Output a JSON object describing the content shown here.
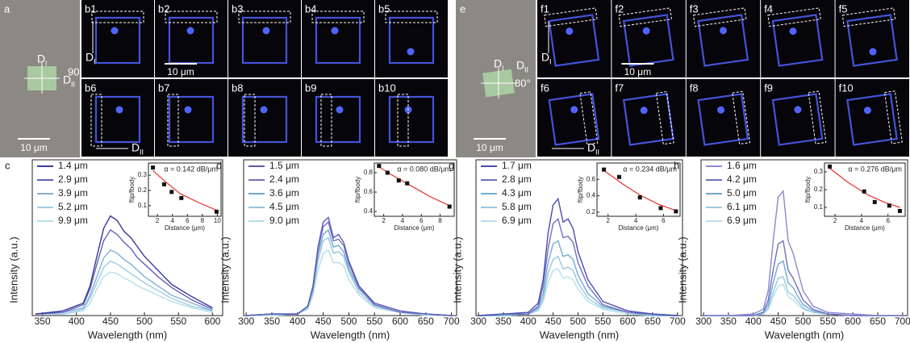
{
  "images": {
    "a": {
      "label": "a",
      "scale": "10 μm",
      "angle": "90°",
      "d1": {
        "main": "D",
        "sub": "I"
      },
      "d2": {
        "main": "D",
        "sub": "II"
      }
    },
    "b": {
      "labels": [
        "b1",
        "b2",
        "b3",
        "b4",
        "b5",
        "b6",
        "b7",
        "b8",
        "b9",
        "b10"
      ],
      "scale": "10 μm",
      "d1": {
        "main": "D",
        "sub": "I"
      },
      "d2": {
        "main": "D",
        "sub": "II"
      }
    },
    "e": {
      "label": "e",
      "scale": "10 μm",
      "angle": "80°",
      "d1": {
        "main": "D",
        "sub": "I"
      },
      "d2": {
        "main": "D",
        "sub": "II"
      }
    },
    "f": {
      "labels": [
        "f1",
        "f2",
        "f3",
        "f4",
        "f5",
        "f6",
        "f7",
        "f8",
        "f9",
        "f10"
      ],
      "scale": "10 μm",
      "d1": {
        "main": "D",
        "sub": "I"
      },
      "d2": {
        "main": "D",
        "sub": "II"
      }
    }
  },
  "chart_data": [
    {
      "type": "line",
      "panel": "c",
      "xlabel": "Wavelength (nm)",
      "ylabel": "Intensity (a.u.)",
      "xlim": [
        335,
        615
      ],
      "xticks": [
        350,
        400,
        450,
        500,
        550,
        600
      ],
      "ylim": [
        0,
        1
      ],
      "x": [
        340,
        380,
        410,
        420,
        430,
        440,
        450,
        460,
        470,
        480,
        490,
        500,
        520,
        540,
        570,
        600
      ],
      "series": [
        {
          "name": "1.4 μm",
          "color": "#3b3a9c",
          "values": [
            0.01,
            0.03,
            0.08,
            0.19,
            0.38,
            0.56,
            0.64,
            0.61,
            0.54,
            0.5,
            0.44,
            0.38,
            0.29,
            0.2,
            0.12,
            0.05
          ]
        },
        {
          "name": "2.9 μm",
          "color": "#6262bb",
          "values": [
            0.01,
            0.02,
            0.07,
            0.17,
            0.33,
            0.48,
            0.55,
            0.52,
            0.47,
            0.43,
            0.37,
            0.33,
            0.25,
            0.18,
            0.1,
            0.04
          ]
        },
        {
          "name": "3.9 μm",
          "color": "#7fb0d6",
          "values": [
            0.01,
            0.02,
            0.05,
            0.13,
            0.25,
            0.37,
            0.42,
            0.4,
            0.36,
            0.33,
            0.29,
            0.25,
            0.19,
            0.13,
            0.08,
            0.03
          ]
        },
        {
          "name": "5.2 μm",
          "color": "#9fcbe0",
          "values": [
            0.01,
            0.01,
            0.04,
            0.11,
            0.21,
            0.31,
            0.35,
            0.33,
            0.3,
            0.27,
            0.24,
            0.21,
            0.16,
            0.11,
            0.06,
            0.03
          ]
        },
        {
          "name": "9.9 μm",
          "color": "#b6dfe9",
          "values": [
            0.01,
            0.01,
            0.03,
            0.08,
            0.17,
            0.25,
            0.28,
            0.27,
            0.24,
            0.22,
            0.19,
            0.17,
            0.13,
            0.09,
            0.05,
            0.02
          ]
        }
      ],
      "inset": {
        "annotation": "α = 0.142 dB/μm",
        "xlabel": "Distance (μm)",
        "ylabel": "ftip/fbody",
        "xlim": [
          0.8,
          10.5
        ],
        "xticks": [
          2,
          4,
          6,
          8,
          10
        ],
        "ylim": [
          0.03,
          0.38
        ],
        "yticks": [
          0.1,
          0.2,
          0.3
        ],
        "x": [
          1.4,
          2.9,
          3.9,
          5.2,
          9.9
        ],
        "values": [
          0.35,
          0.24,
          0.19,
          0.15,
          0.06
        ],
        "fit": {
          "color": "#e8322b",
          "x": [
            1.4,
            3,
            5,
            7.5,
            9.9
          ],
          "values": [
            0.33,
            0.26,
            0.18,
            0.12,
            0.07
          ]
        }
      }
    },
    {
      "type": "line",
      "panel": "d",
      "xlabel": "Wavelength (nm)",
      "ylabel": "Intensity (a.u.)",
      "xlim": [
        295,
        710
      ],
      "xticks": [
        300,
        350,
        400,
        450,
        500,
        550,
        600,
        650,
        700
      ],
      "ylim": [
        0,
        1
      ],
      "x": [
        300,
        350,
        400,
        420,
        430,
        440,
        450,
        460,
        470,
        480,
        490,
        500,
        520,
        550,
        600,
        650,
        700
      ],
      "series": [
        {
          "name": "1.5 μm",
          "color": "#5a5ab6",
          "values": [
            0,
            0.01,
            0.01,
            0.06,
            0.19,
            0.44,
            0.6,
            0.63,
            0.5,
            0.52,
            0.47,
            0.35,
            0.19,
            0.08,
            0.03,
            0.01,
            0
          ]
        },
        {
          "name": "2.4 μm",
          "color": "#7373c2",
          "values": [
            0,
            0.01,
            0.01,
            0.06,
            0.18,
            0.42,
            0.57,
            0.6,
            0.48,
            0.49,
            0.45,
            0.33,
            0.18,
            0.07,
            0.02,
            0.01,
            0
          ]
        },
        {
          "name": "3.6 μm",
          "color": "#6fa8d2",
          "values": [
            0,
            0.01,
            0.01,
            0.06,
            0.17,
            0.39,
            0.52,
            0.55,
            0.44,
            0.45,
            0.41,
            0.3,
            0.17,
            0.07,
            0.02,
            0.01,
            0
          ]
        },
        {
          "name": "4.5 μm",
          "color": "#93c6de",
          "values": [
            0,
            0.01,
            0.01,
            0.05,
            0.15,
            0.35,
            0.48,
            0.5,
            0.4,
            0.41,
            0.38,
            0.28,
            0.15,
            0.06,
            0.02,
            0.01,
            0
          ]
        },
        {
          "name": "9.0 μm",
          "color": "#b3dde8",
          "values": [
            0,
            0,
            0.01,
            0.04,
            0.13,
            0.29,
            0.4,
            0.42,
            0.34,
            0.34,
            0.32,
            0.23,
            0.13,
            0.05,
            0.02,
            0,
            0
          ]
        }
      ],
      "inset": {
        "annotation": "α = 0.080 dB/μm",
        "xlabel": "Distance (μm)",
        "ylabel": "ftip/fbody",
        "xlim": [
          1,
          9.5
        ],
        "xticks": [
          2,
          4,
          6,
          8
        ],
        "ylim": [
          0.35,
          0.9
        ],
        "yticks": [
          0.4,
          0.6,
          0.8
        ],
        "x": [
          1.5,
          2.4,
          3.6,
          4.5,
          9.0
        ],
        "values": [
          0.87,
          0.8,
          0.72,
          0.69,
          0.45
        ],
        "fit": {
          "color": "#e8322b",
          "x": [
            1.5,
            3,
            5,
            7,
            9.0
          ],
          "values": [
            0.86,
            0.77,
            0.66,
            0.55,
            0.46
          ]
        }
      }
    },
    {
      "type": "line",
      "panel": "g",
      "xlabel": "Wavelength (nm)",
      "ylabel": "Intensity (a.u.)",
      "xlim": [
        295,
        710
      ],
      "xticks": [
        300,
        350,
        400,
        450,
        500,
        550,
        600,
        650,
        700
      ],
      "ylim": [
        0,
        1
      ],
      "x": [
        300,
        350,
        400,
        420,
        430,
        440,
        450,
        460,
        470,
        480,
        490,
        500,
        520,
        550,
        600,
        650,
        700
      ],
      "series": [
        {
          "name": "1.7 μm",
          "color": "#4c4cae",
          "values": [
            0,
            0.01,
            0.02,
            0.08,
            0.23,
            0.53,
            0.71,
            0.75,
            0.6,
            0.62,
            0.56,
            0.41,
            0.23,
            0.09,
            0.03,
            0.01,
            0
          ]
        },
        {
          "name": "2.8 μm",
          "color": "#7070c0",
          "values": [
            0,
            0.01,
            0.01,
            0.06,
            0.19,
            0.43,
            0.59,
            0.62,
            0.5,
            0.51,
            0.47,
            0.34,
            0.19,
            0.07,
            0.02,
            0.01,
            0
          ]
        },
        {
          "name": "4.3 μm",
          "color": "#72acd4",
          "values": [
            0,
            0,
            0.01,
            0.05,
            0.14,
            0.34,
            0.46,
            0.48,
            0.38,
            0.39,
            0.36,
            0.26,
            0.14,
            0.06,
            0.02,
            0,
            0
          ]
        },
        {
          "name": "5.8 μm",
          "color": "#98c9df",
          "values": [
            0,
            0,
            0.01,
            0.04,
            0.11,
            0.27,
            0.36,
            0.38,
            0.3,
            0.31,
            0.29,
            0.21,
            0.11,
            0.05,
            0.02,
            0,
            0
          ]
        },
        {
          "name": "6.9 μm",
          "color": "#b6dfe9",
          "values": [
            0,
            0,
            0.01,
            0.03,
            0.09,
            0.21,
            0.29,
            0.3,
            0.24,
            0.25,
            0.23,
            0.17,
            0.09,
            0.04,
            0.01,
            0,
            0
          ]
        }
      ],
      "inset": {
        "annotation": "α = 0.234 dB/μm",
        "xlabel": "Distance (μm)",
        "ylabel": "ftip/fbody",
        "xlim": [
          1.2,
          7.2
        ],
        "xticks": [
          2,
          4,
          6
        ],
        "ylim": [
          0.15,
          0.8
        ],
        "yticks": [
          0.2,
          0.4,
          0.6
        ],
        "x": [
          1.7,
          2.8,
          4.3,
          5.8,
          6.9
        ],
        "values": [
          0.72,
          0.63,
          0.38,
          0.25,
          0.21
        ],
        "fit": {
          "color": "#e8322b",
          "x": [
            1.7,
            3,
            4.3,
            5.6,
            6.9
          ],
          "values": [
            0.71,
            0.55,
            0.41,
            0.3,
            0.22
          ]
        }
      }
    },
    {
      "type": "line",
      "panel": "h",
      "xlabel": "Wavelength (nm)",
      "ylabel": "Intensity (a.u.)",
      "xlim": [
        295,
        710
      ],
      "xticks": [
        300,
        350,
        400,
        450,
        500,
        550,
        600,
        650,
        700
      ],
      "ylim": [
        0,
        1
      ],
      "x": [
        300,
        350,
        400,
        420,
        430,
        440,
        450,
        460,
        470,
        480,
        490,
        500,
        520,
        550,
        600,
        650,
        700
      ],
      "series": [
        {
          "name": "1.6 μm",
          "color": "#8a88cc",
          "values": [
            0,
            0,
            0.01,
            0.04,
            0.16,
            0.48,
            0.76,
            0.8,
            0.48,
            0.4,
            0.28,
            0.16,
            0.06,
            0.02,
            0.01,
            0,
            0
          ]
        },
        {
          "name": "4.2 μm",
          "color": "#7070c0",
          "values": [
            0,
            0,
            0,
            0.02,
            0.1,
            0.29,
            0.46,
            0.48,
            0.29,
            0.24,
            0.17,
            0.1,
            0.04,
            0.01,
            0,
            0,
            0
          ]
        },
        {
          "name": "5.0 μm",
          "color": "#6fa8d2",
          "values": [
            0,
            0,
            0,
            0.02,
            0.07,
            0.21,
            0.33,
            0.35,
            0.21,
            0.18,
            0.12,
            0.07,
            0.03,
            0.01,
            0,
            0,
            0
          ]
        },
        {
          "name": "6.1 μm",
          "color": "#98c9df",
          "values": [
            0,
            0,
            0,
            0.01,
            0.05,
            0.15,
            0.24,
            0.25,
            0.15,
            0.13,
            0.09,
            0.05,
            0.02,
            0.01,
            0,
            0,
            0
          ]
        },
        {
          "name": "6.9 μm",
          "color": "#b6dfe9",
          "values": [
            0,
            0,
            0,
            0.01,
            0.04,
            0.12,
            0.19,
            0.2,
            0.12,
            0.1,
            0.07,
            0.04,
            0.02,
            0.01,
            0,
            0,
            0
          ]
        }
      ],
      "inset": {
        "annotation": "α = 0.276 dB/μm",
        "xlabel": "Distance (μm)",
        "ylabel": "ftip/fbody",
        "xlim": [
          1.2,
          7.3
        ],
        "xticks": [
          2,
          4,
          6
        ],
        "ylim": [
          0.05,
          0.35
        ],
        "yticks": [
          0.1,
          0.2,
          0.3
        ],
        "x": [
          1.6,
          4.2,
          5.0,
          6.1,
          6.9
        ],
        "values": [
          0.33,
          0.19,
          0.13,
          0.11,
          0.08
        ],
        "fit": {
          "color": "#e8322b",
          "x": [
            1.6,
            3,
            4.5,
            5.7,
            6.9
          ],
          "values": [
            0.32,
            0.24,
            0.17,
            0.13,
            0.1
          ]
        }
      }
    }
  ]
}
